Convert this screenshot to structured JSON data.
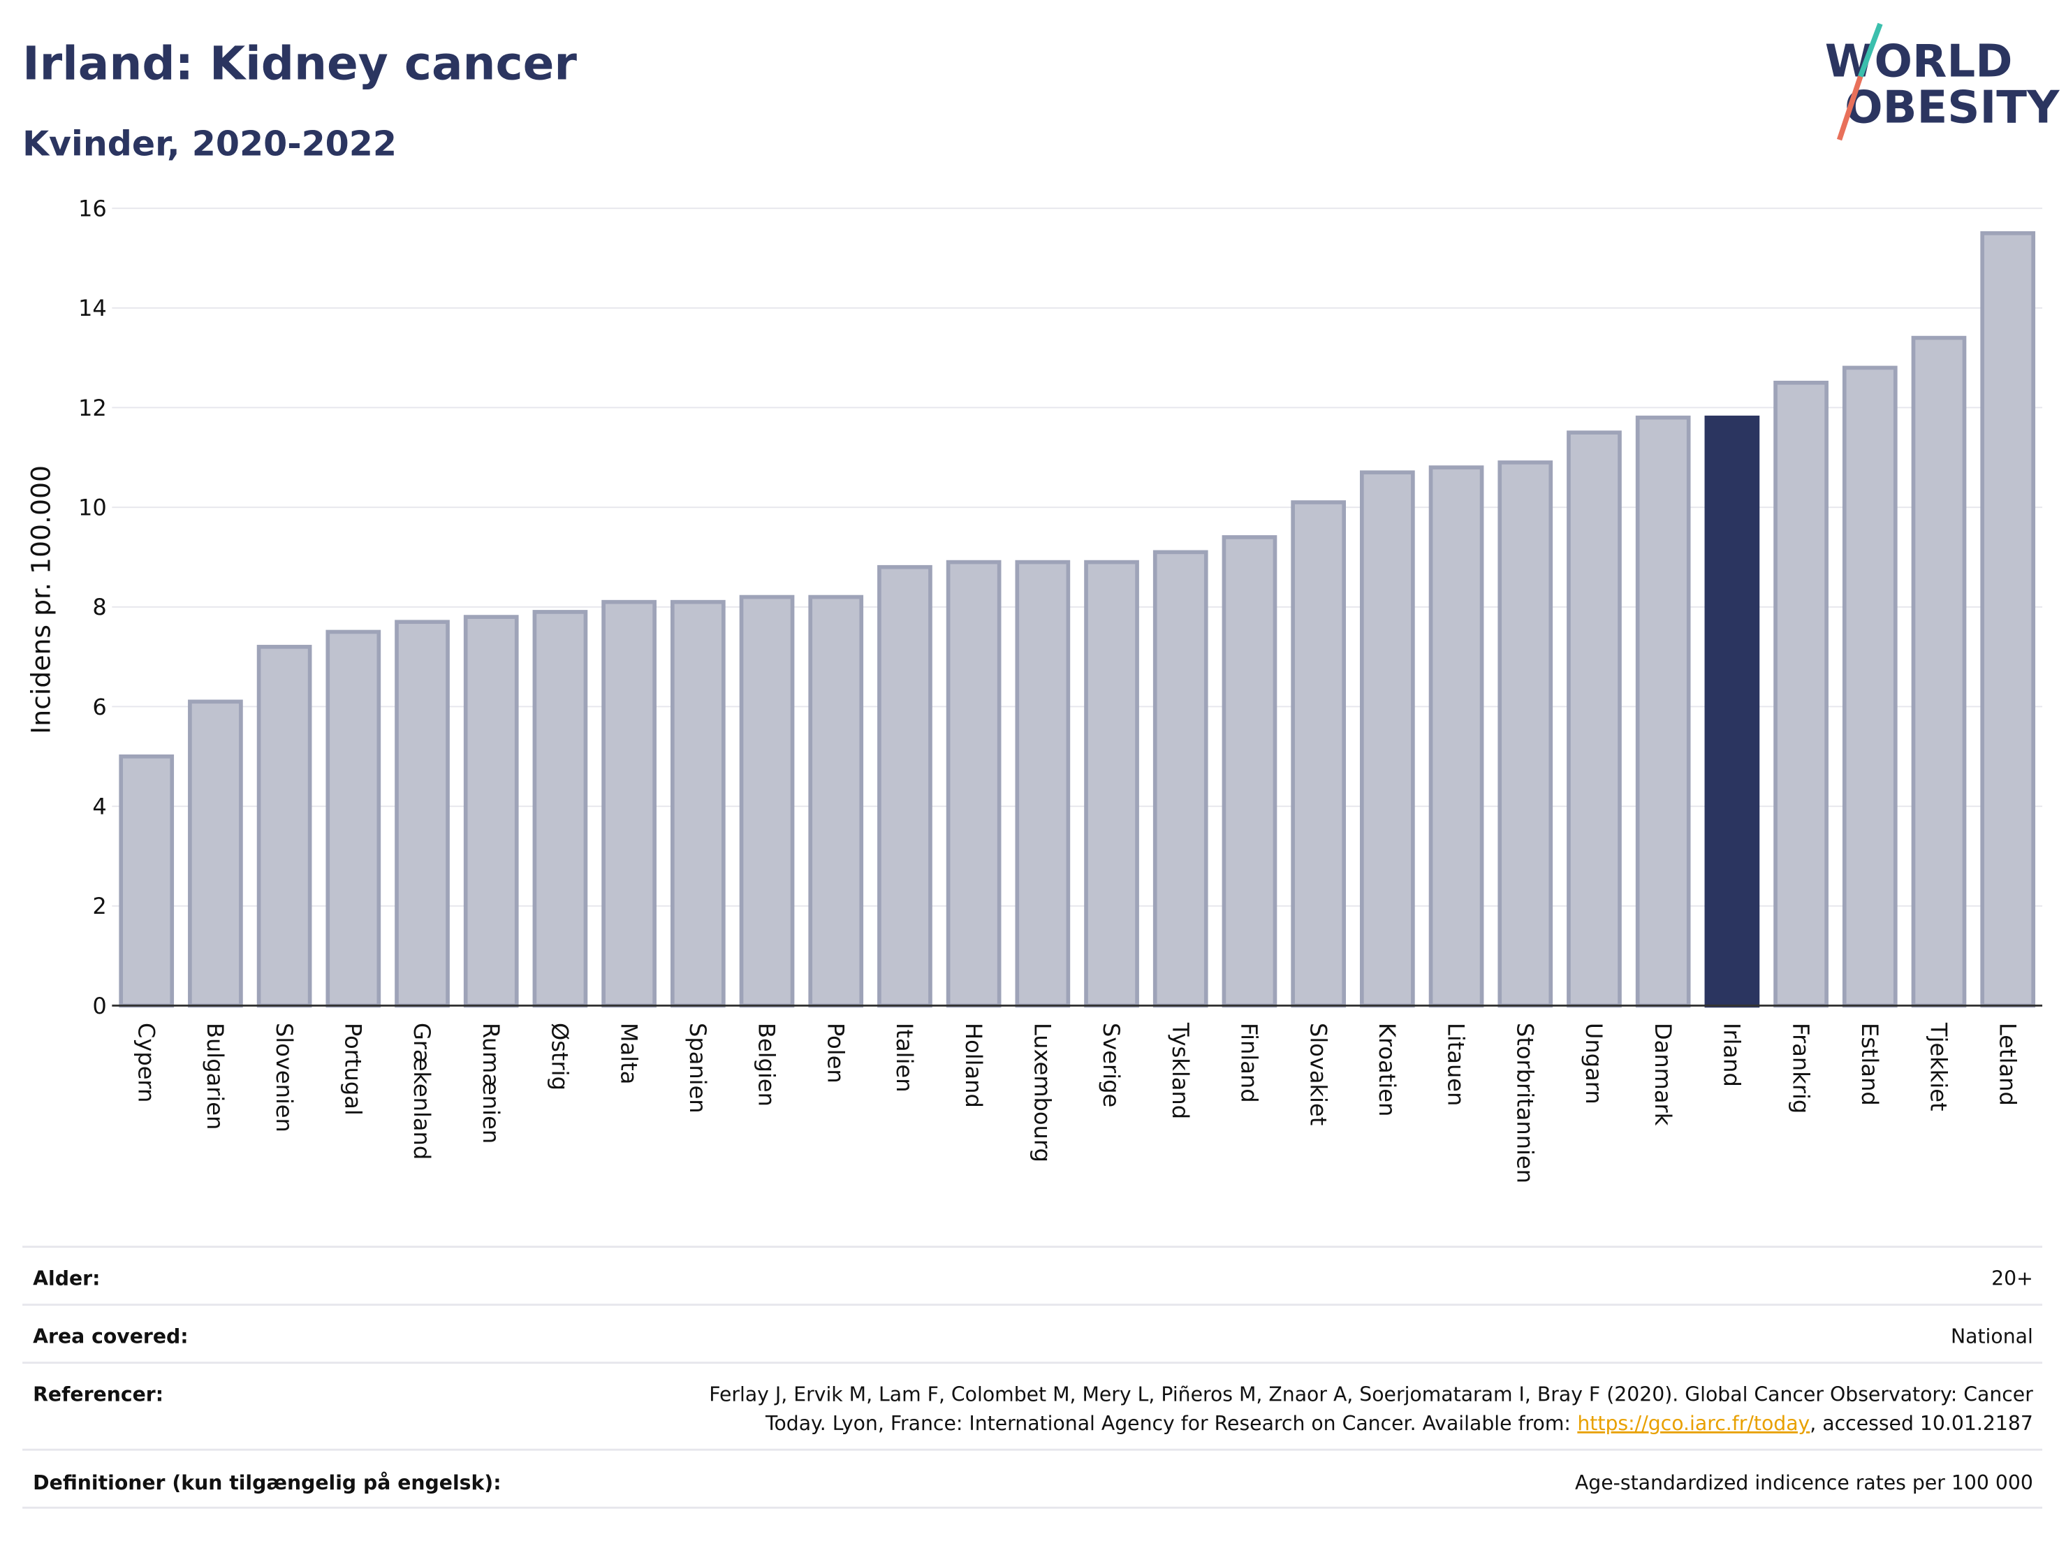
{
  "chart_data": {
    "type": "bar",
    "title": "Irland: Kidney cancer",
    "subtitle": "Kvinder, 2020-2022",
    "logo": [
      "WORLD",
      "OBESITY"
    ],
    "ylabel": "Incidens pr. 100.000",
    "categories": [
      "Cypern",
      "Bulgarien",
      "Slovenien",
      "Portugal",
      "Grækenland",
      "Rumænien",
      "Østrig",
      "Malta",
      "Spanien",
      "Belgien",
      "Polen",
      "Italien",
      "Holland",
      "Luxembourg",
      "Sverige",
      "Tyskland",
      "Finland",
      "Slovakiet",
      "Kroatien",
      "Litauen",
      "Storbritannien",
      "Ungarn",
      "Danmark",
      "Irland",
      "Frankrig",
      "Estland",
      "Tjekkiet",
      "Letland"
    ],
    "values": [
      5.0,
      6.1,
      7.2,
      7.5,
      7.7,
      7.8,
      7.9,
      8.1,
      8.1,
      8.2,
      8.2,
      8.8,
      8.9,
      8.9,
      8.9,
      9.1,
      9.4,
      10.1,
      10.7,
      10.8,
      10.9,
      11.5,
      11.8,
      11.8,
      12.5,
      12.8,
      13.4,
      15.5
    ],
    "color": "#bfc2cf",
    "edge_color": "#9ea3b8",
    "highlight_color": "#2b3560",
    "highlight_index": 23,
    "ylim": [
      0,
      16
    ],
    "yticks": [
      0,
      2,
      4,
      6,
      8,
      10,
      12,
      14,
      16
    ],
    "grid": true
  },
  "table": {
    "rows": [
      {
        "label": "Alder:",
        "value": "20+"
      },
      {
        "label": "Area covered:",
        "value": "National"
      },
      {
        "label": "Referencer:",
        "lines": [
          "Ferlay J, Ervik M, Lam F, Colombet M, Mery L, Piñeros M, Znaor A, Soerjomataram I, Bray F (2020). Global Cancer Observatory: Cancer",
          "Today. Lyon, France: International Agency for Research on Cancer. Available from:"
        ],
        "link": "https://gco.iarc.fr/today",
        "after": ", accessed 10.01.2187"
      },
      {
        "label": "Definitioner (kun tilgængelig på engelsk):",
        "value": "Age-standardized indicence rates per 100 000"
      }
    ]
  }
}
